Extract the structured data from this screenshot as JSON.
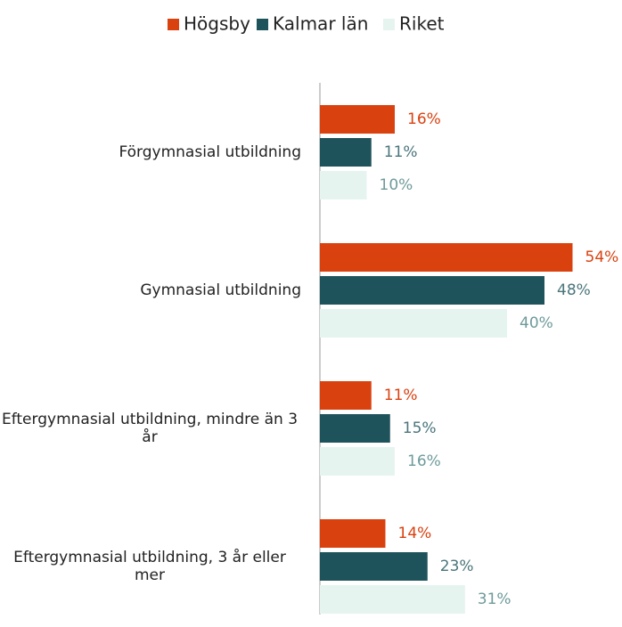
{
  "chart_data": {
    "type": "hbar",
    "categories": [
      "Förgymnasial utbildning",
      "Gymnasial utbildning",
      "Eftergymnasial utbildning, mindre än 3 år",
      "Eftergymnasial utbildning, 3 år eller mer"
    ],
    "series": [
      {
        "name": "Högsby",
        "color": "#d9410f",
        "label_color": "#d9410f",
        "values": [
          16,
          54,
          11,
          14
        ],
        "value_labels": [
          "16%",
          "54%",
          "11%",
          "14%"
        ]
      },
      {
        "name": "Kalmar län",
        "color": "#1f535c",
        "label_color": "#4a757b",
        "values": [
          11,
          48,
          15,
          23
        ],
        "value_labels": [
          "11%",
          "48%",
          "15%",
          "23%"
        ]
      },
      {
        "name": "Riket",
        "color": "#e6f4f0",
        "label_color": "#6f9a9b",
        "values": [
          10,
          40,
          16,
          31
        ],
        "value_labels": [
          "10%",
          "40%",
          "16%",
          "31%"
        ]
      }
    ],
    "xlim": [
      0,
      60
    ],
    "legend": "top"
  }
}
